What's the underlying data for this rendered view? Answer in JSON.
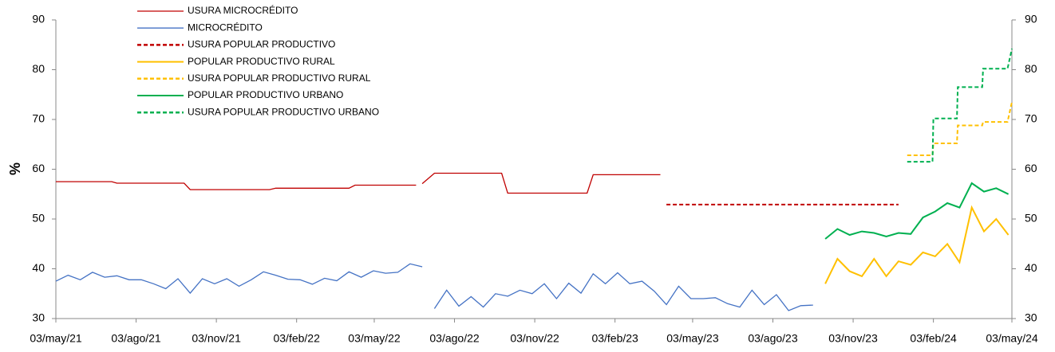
{
  "chart_data": {
    "type": "line",
    "ylabel": "%",
    "xlim": [
      "2021-05-03",
      "2024-05-03"
    ],
    "xticks": [
      {
        "value": "2021-05-03",
        "label": "03/may/21"
      },
      {
        "value": "2021-08-03",
        "label": "03/ago/21"
      },
      {
        "value": "2021-11-03",
        "label": "03/nov/21"
      },
      {
        "value": "2022-02-03",
        "label": "03/feb/22"
      },
      {
        "value": "2022-05-03",
        "label": "03/may/22"
      },
      {
        "value": "2022-08-03",
        "label": "03/ago/22"
      },
      {
        "value": "2022-11-03",
        "label": "03/nov/22"
      },
      {
        "value": "2023-02-03",
        "label": "03/feb/23"
      },
      {
        "value": "2023-05-03",
        "label": "03/may/23"
      },
      {
        "value": "2023-08-03",
        "label": "03/ago/23"
      },
      {
        "value": "2023-11-03",
        "label": "03/nov/23"
      },
      {
        "value": "2024-02-03",
        "label": "03/feb/24"
      },
      {
        "value": "2024-05-03",
        "label": "03/may/24"
      }
    ],
    "ylim": [
      30,
      90
    ],
    "yticks": [
      30,
      40,
      50,
      60,
      70,
      80,
      90
    ],
    "y2lim": [
      30,
      90
    ],
    "y2ticks": [
      30,
      40,
      50,
      60,
      70,
      80,
      90
    ],
    "legend": "top-left",
    "series": [
      {
        "name": "USURA MICROCRÉDITO",
        "color": "#c00000",
        "dashed": false,
        "x": [
          "2021-05-03",
          "2021-07-06",
          "2021-07-12",
          "2021-09-27",
          "2021-10-04",
          "2022-01-03",
          "2022-01-10",
          "2022-04-04",
          "2022-04-11",
          "2022-06-20",
          null,
          "2022-06-27",
          "2022-07-11",
          "2022-09-26",
          "2022-10-03",
          "2023-01-02",
          "2023-01-09",
          "2023-03-27"
        ],
        "values": [
          57.5,
          57.5,
          57.2,
          57.2,
          55.9,
          55.9,
          56.2,
          56.2,
          56.8,
          56.8,
          null,
          57.1,
          59.2,
          59.2,
          55.2,
          55.2,
          58.9,
          58.9
        ]
      },
      {
        "name": "MICROCRÉDITO",
        "color": "#4472c4",
        "dashed": false,
        "x": [
          "2021-05-03",
          "2021-05-17",
          "2021-05-31",
          "2021-06-14",
          "2021-06-28",
          "2021-07-12",
          "2021-07-26",
          "2021-08-09",
          "2021-08-23",
          "2021-09-06",
          "2021-09-20",
          "2021-10-04",
          "2021-10-18",
          "2021-11-01",
          "2021-11-15",
          "2021-11-29",
          "2021-12-13",
          "2021-12-27",
          "2022-01-10",
          "2022-01-24",
          "2022-02-07",
          "2022-02-21",
          "2022-03-07",
          "2022-03-21",
          "2022-04-04",
          "2022-04-18",
          "2022-05-02",
          "2022-05-16",
          "2022-05-30",
          "2022-06-13",
          "2022-06-27",
          null,
          "2022-07-11",
          "2022-07-25",
          "2022-08-08",
          "2022-08-22",
          "2022-09-05",
          "2022-09-19",
          "2022-10-03",
          "2022-10-17",
          "2022-10-31",
          "2022-11-14",
          "2022-11-28",
          "2022-12-12",
          "2022-12-26",
          "2023-01-09",
          "2023-01-23",
          "2023-02-06",
          "2023-02-20",
          "2023-03-06",
          "2023-03-20",
          "2023-04-03",
          "2023-04-17",
          "2023-05-01",
          "2023-05-15",
          "2023-05-29",
          "2023-06-12",
          "2023-06-26",
          "2023-07-10",
          "2023-07-24",
          "2023-08-07",
          "2023-08-21",
          "2023-09-04",
          "2023-09-18"
        ],
        "values": [
          37.5,
          38.7,
          37.8,
          39.3,
          38.3,
          38.6,
          37.8,
          37.8,
          37.0,
          36.0,
          38.0,
          35.1,
          38.0,
          37.0,
          38.0,
          36.5,
          37.8,
          39.4,
          38.7,
          37.9,
          37.8,
          36.9,
          38.1,
          37.6,
          39.4,
          38.3,
          39.6,
          39.1,
          39.3,
          41.0,
          40.4,
          null,
          32.0,
          35.7,
          32.5,
          34.4,
          32.3,
          35.0,
          34.5,
          35.7,
          35.0,
          37.0,
          34.0,
          37.1,
          35.1,
          39.0,
          37.0,
          39.2,
          37.0,
          37.5,
          35.5,
          32.8,
          36.5,
          34.0,
          34.0,
          34.2,
          33.0,
          32.3,
          35.7,
          32.8,
          34.8,
          31.6,
          32.6,
          32.7
        ]
      },
      {
        "name": "USURA POPULAR PRODUCTIVO",
        "color": "#c00000",
        "dashed": true,
        "x": [
          "2023-04-03",
          "2023-12-25"
        ],
        "values": [
          52.9,
          52.9
        ]
      },
      {
        "name": "POPULAR PRODUCTIVO RURAL",
        "color": "#ffc000",
        "dashed": false,
        "x": [
          "2023-10-02",
          "2023-10-16",
          "2023-10-30",
          "2023-11-13",
          "2023-11-27",
          "2023-12-11",
          "2023-12-25",
          "2024-01-08",
          "2024-01-22",
          "2024-02-05",
          "2024-02-19",
          "2024-03-04",
          "2024-03-18",
          "2024-04-01",
          "2024-04-15",
          "2024-04-29"
        ],
        "values": [
          37.0,
          42.0,
          39.5,
          38.5,
          42.0,
          38.5,
          41.5,
          40.8,
          43.3,
          42.5,
          45.0,
          41.3,
          52.3,
          47.5,
          50.0,
          46.8
        ]
      },
      {
        "name": "USURA POPULAR PRODUCTIVO RURAL",
        "color": "#ffc000",
        "dashed": true,
        "x": [
          "2024-01-04",
          "2024-02-02",
          "2024-02-03",
          "2024-03-01",
          "2024-03-02",
          "2024-03-30",
          "2024-03-31",
          "2024-04-28",
          "2024-05-03"
        ],
        "values": [
          62.8,
          62.8,
          65.2,
          65.2,
          68.8,
          68.8,
          69.5,
          69.5,
          73.5
        ]
      },
      {
        "name": "POPULAR PRODUCTIVO URBANO",
        "color": "#00b050",
        "dashed": false,
        "x": [
          "2023-10-02",
          "2023-10-16",
          "2023-10-30",
          "2023-11-13",
          "2023-11-27",
          "2023-12-11",
          "2023-12-25",
          "2024-01-08",
          "2024-01-22",
          "2024-02-05",
          "2024-02-19",
          "2024-03-04",
          "2024-03-18",
          "2024-04-01",
          "2024-04-15",
          "2024-04-29"
        ],
        "values": [
          46.0,
          48.0,
          46.8,
          47.5,
          47.2,
          46.5,
          47.2,
          47.0,
          50.3,
          51.5,
          53.2,
          52.3,
          57.2,
          55.5,
          56.2,
          55.0
        ]
      },
      {
        "name": "USURA POPULAR PRODUCTIVO URBANO",
        "color": "#00b050",
        "dashed": true,
        "x": [
          "2024-01-04",
          "2024-02-02",
          "2024-02-03",
          "2024-03-01",
          "2024-03-02",
          "2024-03-30",
          "2024-03-31",
          "2024-04-28",
          "2024-05-03"
        ],
        "values": [
          61.5,
          61.5,
          70.2,
          70.2,
          76.5,
          76.5,
          80.2,
          80.2,
          84.2
        ]
      }
    ]
  }
}
